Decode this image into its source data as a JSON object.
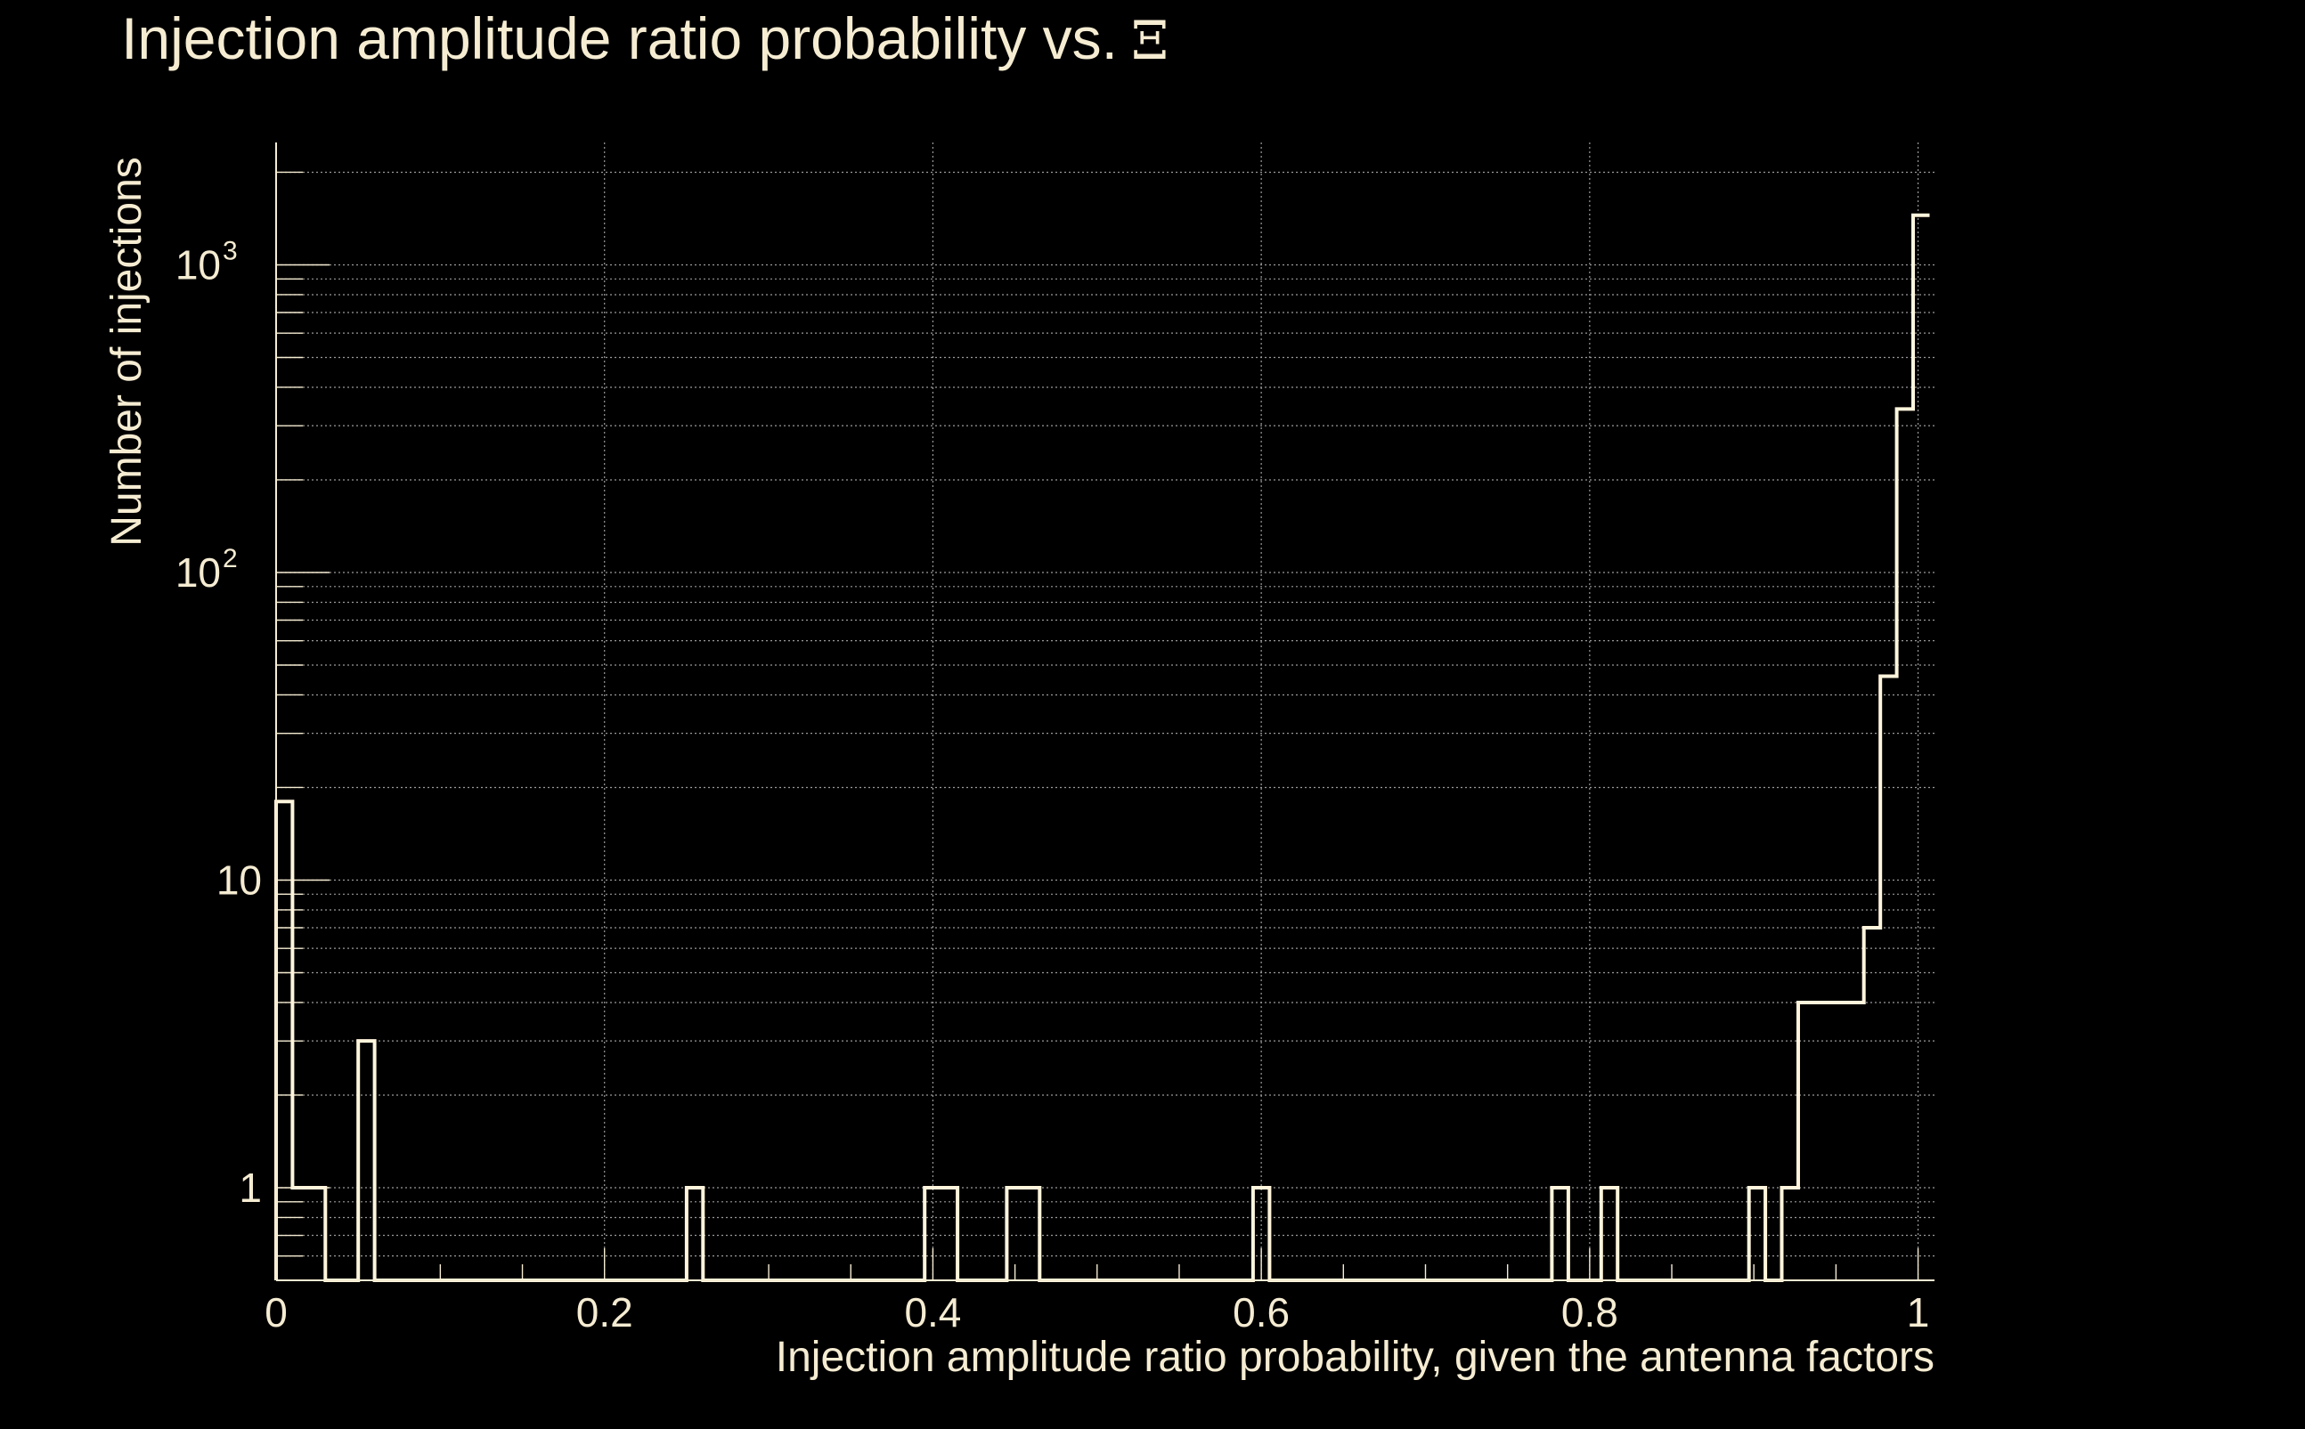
{
  "chart_data": {
    "type": "histogram",
    "title": "Injection amplitude ratio probability vs.",
    "title_symbol": "Ξ",
    "xlabel": "Injection amplitude ratio probability, given the antenna factors",
    "ylabel": "Number of injections",
    "xlim": [
      0,
      1.01
    ],
    "ylim": [
      0.5,
      2500
    ],
    "yscale": "log",
    "grid": true,
    "x_ticks": [
      {
        "value": 0,
        "label": "0"
      },
      {
        "value": 0.2,
        "label": "0.2"
      },
      {
        "value": 0.4,
        "label": "0.4"
      },
      {
        "value": 0.6,
        "label": "0.6"
      },
      {
        "value": 0.8,
        "label": "0.8"
      },
      {
        "value": 1,
        "label": "1"
      }
    ],
    "y_ticks": [
      {
        "value": 1,
        "base": "1",
        "exp": ""
      },
      {
        "value": 10,
        "base": "10",
        "exp": ""
      },
      {
        "value": 100,
        "base": "10",
        "exp": "2"
      },
      {
        "value": 1000,
        "base": "10",
        "exp": "3"
      }
    ],
    "series": [
      {
        "name": "injections",
        "color": "#fff5dc",
        "bin_edges": [
          0.0,
          0.01,
          0.03,
          0.05,
          0.06,
          0.25,
          0.26,
          0.395,
          0.415,
          0.445,
          0.465,
          0.595,
          0.605,
          0.777,
          0.787,
          0.807,
          0.817,
          0.897,
          0.907,
          0.917,
          0.927,
          0.967,
          0.977,
          0.987,
          0.997,
          1.007
        ],
        "counts": [
          18,
          1,
          0,
          3,
          0,
          1,
          0,
          1,
          0,
          1,
          0,
          1,
          0,
          1,
          0,
          1,
          0,
          1,
          0,
          1,
          4,
          7,
          46,
          340,
          1450
        ]
      }
    ]
  },
  "colors": {
    "background": "#000000",
    "foreground": "#f5ecd2",
    "grid": "#9a9a9a"
  }
}
